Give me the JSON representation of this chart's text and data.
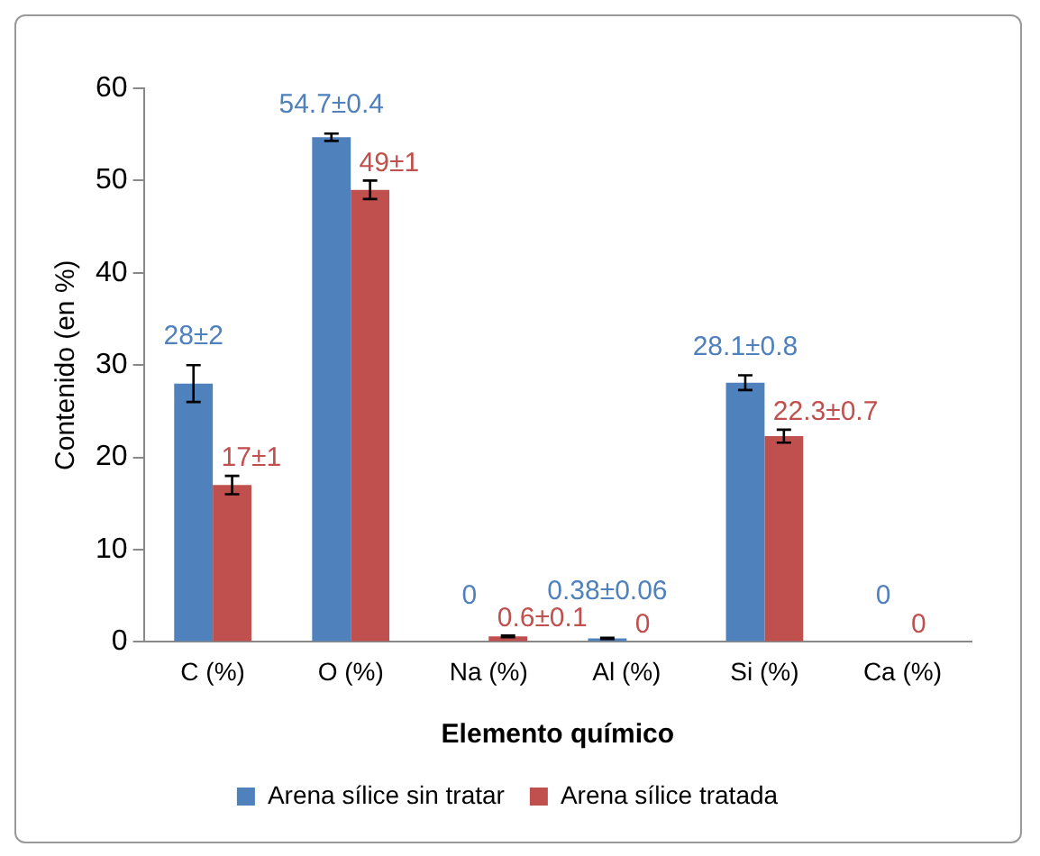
{
  "chart_data": {
    "type": "bar",
    "xlabel": "Elemento químico",
    "ylabel": "Contenido (en %)",
    "categories": [
      "C (%)",
      "O (%)",
      "Na (%)",
      "Al (%)",
      "Si (%)",
      "Ca (%)"
    ],
    "series": [
      {
        "name": "Arena sílice sin tratar",
        "color": "#4f81bd",
        "values": [
          28,
          54.7,
          0,
          0.38,
          28.1,
          0
        ],
        "errors": [
          2,
          0.4,
          null,
          0.06,
          0.8,
          null
        ],
        "value_labels": [
          "28±2",
          "54.7±0.4",
          "0",
          "0.38±0.06",
          "28.1±0.8",
          "0"
        ]
      },
      {
        "name": "Arena sílice tratada",
        "color": "#c0504d",
        "values": [
          17,
          49,
          0.6,
          0,
          22.3,
          0
        ],
        "errors": [
          1,
          1,
          0.1,
          null,
          0.7,
          null
        ],
        "value_labels": [
          "17±1",
          "49±1",
          "0.6±0.1",
          "0",
          "22.3±0.7",
          "0"
        ]
      }
    ],
    "ylim": [
      0,
      60
    ],
    "yticks": [
      0,
      10,
      20,
      30,
      40,
      50,
      60
    ],
    "grid": false,
    "legend": "bottom"
  }
}
